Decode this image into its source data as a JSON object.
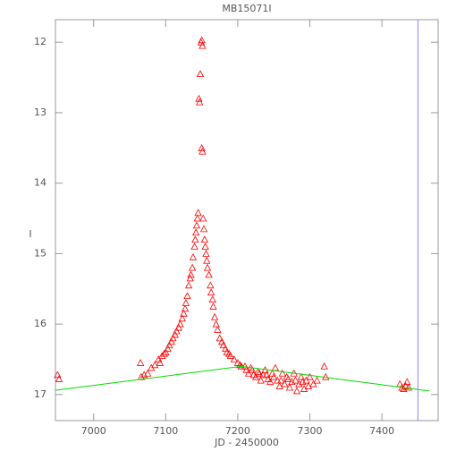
{
  "chart_data": {
    "type": "scatter",
    "title": "MB15071I",
    "x_label": "JD - 2450000",
    "y_label": "I",
    "xlim": [
      6947,
      7478
    ],
    "ylim": [
      17.37,
      11.68
    ],
    "xticks": [
      7000,
      7100,
      7200,
      7300,
      7400
    ],
    "yticks": [
      12,
      13,
      14,
      15,
      16,
      17
    ],
    "series": [
      {
        "type": "scatter",
        "color": "#ff0000",
        "x": [
          6950,
          6952,
          7065,
          7066,
          7070,
          7075,
          7080,
          7085,
          7090,
          7092,
          7095,
          7098,
          7100,
          7103,
          7105,
          7108,
          7110,
          7113,
          7115,
          7118,
          7120,
          7123,
          7125,
          7127,
          7128,
          7130,
          7132,
          7134,
          7135,
          7137,
          7138,
          7140,
          7141,
          7142,
          7143,
          7144,
          7145,
          7146,
          7147,
          7148,
          7149,
          7150,
          7150,
          7151,
          7151,
          7152,
          7153,
          7154,
          7155,
          7156,
          7157,
          7158,
          7160,
          7162,
          7163,
          7165,
          7166,
          7168,
          7170,
          7172,
          7175,
          7178,
          7180,
          7183,
          7185,
          7188,
          7190,
          7195,
          7200,
          7203,
          7205,
          7210,
          7212,
          7215,
          7218,
          7220,
          7222,
          7225,
          7228,
          7230,
          7232,
          7235,
          7238,
          7240,
          7242,
          7245,
          7248,
          7250,
          7252,
          7255,
          7258,
          7260,
          7262,
          7265,
          7268,
          7270,
          7272,
          7275,
          7278,
          7280,
          7282,
          7285,
          7288,
          7290,
          7292,
          7295,
          7298,
          7300,
          7305,
          7310,
          7320,
          7322,
          7425,
          7428,
          7430,
          7433,
          7435,
          7437
        ],
        "y": [
          16.72,
          16.78,
          16.55,
          16.75,
          16.72,
          16.7,
          16.62,
          16.58,
          16.5,
          16.55,
          16.45,
          16.42,
          16.4,
          16.35,
          16.3,
          16.25,
          16.2,
          16.15,
          16.1,
          16.05,
          16.0,
          15.92,
          15.85,
          15.78,
          15.7,
          15.6,
          15.45,
          15.35,
          15.3,
          15.2,
          15.05,
          14.9,
          14.8,
          14.7,
          14.6,
          14.5,
          14.42,
          12.8,
          12.85,
          12.45,
          12.0,
          11.97,
          13.5,
          12.05,
          13.55,
          14.5,
          14.65,
          14.8,
          14.9,
          15.0,
          15.1,
          15.2,
          15.3,
          15.45,
          15.55,
          15.65,
          15.75,
          15.9,
          16.0,
          16.08,
          16.2,
          16.25,
          16.3,
          16.35,
          16.4,
          16.42,
          16.45,
          16.5,
          16.55,
          16.58,
          16.6,
          16.6,
          16.65,
          16.7,
          16.62,
          16.65,
          16.72,
          16.75,
          16.68,
          16.7,
          16.8,
          16.72,
          16.65,
          16.72,
          16.78,
          16.82,
          16.7,
          16.75,
          16.62,
          16.8,
          16.88,
          16.8,
          16.7,
          16.85,
          16.75,
          16.78,
          16.9,
          16.82,
          16.7,
          16.8,
          16.95,
          16.85,
          16.75,
          16.82,
          16.92,
          16.8,
          16.88,
          16.75,
          16.85,
          16.8,
          16.6,
          16.75,
          16.85,
          16.9,
          16.92,
          16.88,
          16.82,
          16.9
        ]
      },
      {
        "type": "line",
        "color": "#00dd00",
        "x": [
          6947,
          7205,
          7466
        ],
        "y": [
          16.94,
          16.6,
          16.95
        ]
      }
    ],
    "vline": 7450,
    "vline_color": "#8888ff"
  }
}
